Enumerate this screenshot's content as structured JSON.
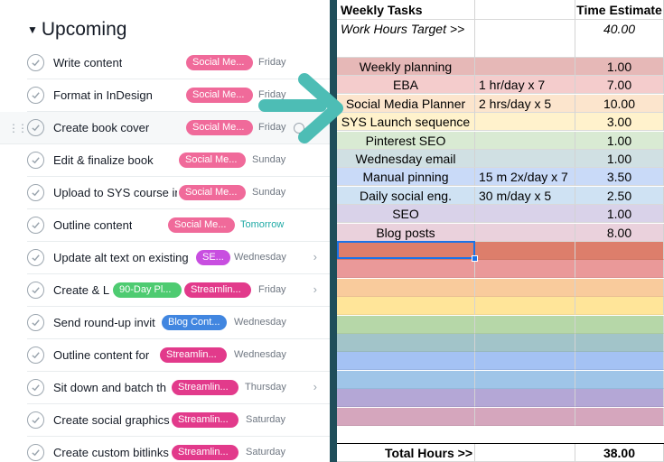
{
  "section": {
    "title": "Upcoming"
  },
  "tasks": [
    {
      "name": "Write content",
      "tags": [
        {
          "label": "Social Me...",
          "color": "#f06a9a"
        }
      ],
      "due": "Friday"
    },
    {
      "name": "Format in InDesign",
      "tags": [
        {
          "label": "Social Me...",
          "color": "#f06a9a"
        }
      ],
      "due": "Friday"
    },
    {
      "name": "Create book cover",
      "tags": [
        {
          "label": "Social Me...",
          "color": "#f06a9a"
        }
      ],
      "due": "Friday"
    },
    {
      "name": "Edit & finalize book",
      "tags": [
        {
          "label": "Social Me...",
          "color": "#f06a9a"
        }
      ],
      "due": "Sunday"
    },
    {
      "name": "Upload to SYS course in",
      "tags": [
        {
          "label": "Social Me...",
          "color": "#f06a9a"
        }
      ],
      "due": "Sunday"
    },
    {
      "name": "Outline content",
      "tags": [
        {
          "label": "Social Me...",
          "color": "#f06a9a"
        }
      ],
      "due": "Tomorrow",
      "due_color": "#20aaa6"
    },
    {
      "name": "Update alt text on existing",
      "tags": [
        {
          "label": "SE...",
          "color": "#c84ee0"
        }
      ],
      "due": "Wednesday"
    },
    {
      "name": "Create & L",
      "tags": [
        {
          "label": "90-Day Pl...",
          "color": "#4ecb71"
        },
        {
          "label": "Streamlin...",
          "color": "#e23a8b"
        }
      ],
      "due": "Friday"
    },
    {
      "name": "Send round-up invit",
      "tags": [
        {
          "label": "Blog Cont...",
          "color": "#4186e0"
        }
      ],
      "due": "Wednesday"
    },
    {
      "name": "Outline content for",
      "tags": [
        {
          "label": "Streamlin...",
          "color": "#e23a8b"
        }
      ],
      "due": "Wednesday"
    },
    {
      "name": "Sit down and batch th",
      "tags": [
        {
          "label": "Streamlin...",
          "color": "#e23a8b"
        }
      ],
      "due": "Thursday"
    },
    {
      "name": "Create social graphics",
      "tags": [
        {
          "label": "Streamlin...",
          "color": "#e23a8b"
        }
      ],
      "due": "Saturday"
    },
    {
      "name": "Create custom bitlinks",
      "tags": [
        {
          "label": "Streamlin...",
          "color": "#e23a8b"
        }
      ],
      "due": "Saturday"
    }
  ],
  "sheet": {
    "header": {
      "col1": "Weekly Tasks",
      "col2": "",
      "col3": "Time Estimate"
    },
    "target": {
      "label": "Work Hours Target  >>",
      "value": "40.00"
    },
    "rows": [
      {
        "task": "Weekly planning",
        "detail": "",
        "hours": "1.00",
        "color": "#e6b8b7"
      },
      {
        "task": "EBA",
        "detail": "1 hr/day x 7",
        "hours": "7.00",
        "color": "#f4cccc"
      },
      {
        "task": "Social Media Planner",
        "detail": "2 hrs/day x 5",
        "hours": "10.00",
        "color": "#fce5cd"
      },
      {
        "task": "SYS Launch sequence",
        "detail": "",
        "hours": "3.00",
        "color": "#fff2cc"
      },
      {
        "task": "Pinterest SEO",
        "detail": "",
        "hours": "1.00",
        "color": "#d9ead3"
      },
      {
        "task": "Wednesday email",
        "detail": "",
        "hours": "1.00",
        "color": "#d0e0e3"
      },
      {
        "task": "Manual pinning",
        "detail": "15 m 2x/day x 7",
        "hours": "3.50",
        "color": "#c9daf8"
      },
      {
        "task": "Daily social eng.",
        "detail": "30 m/day x 5",
        "hours": "2.50",
        "color": "#cfe2f3"
      },
      {
        "task": "SEO",
        "detail": "",
        "hours": "1.00",
        "color": "#d9d2e9"
      },
      {
        "task": "Blog posts",
        "detail": "",
        "hours": "8.00",
        "color": "#ead1dc"
      }
    ],
    "empty_row_colors": [
      "#dd7e6b",
      "#ea9999",
      "#f9cb9c",
      "#ffe599",
      "#b6d7a8",
      "#a2c4c9",
      "#a4c2f4",
      "#9fc5e8",
      "#b4a7d6",
      "#d5a6bd"
    ],
    "total": {
      "label": "Total Hours >>",
      "value": "38.00"
    }
  },
  "colors": {
    "arrow": "#4dbdb5",
    "divider": "#1f4e5a",
    "selection": "#1a73e8"
  }
}
